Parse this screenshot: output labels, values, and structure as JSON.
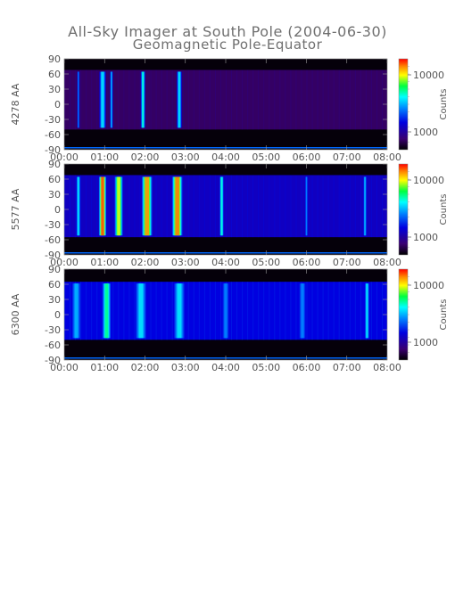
{
  "title": "All-Sky Imager at South Pole (2004-06-30)",
  "subtitle": "Geomagnetic Pole-Equator",
  "chart_data": [
    {
      "type": "heatmap",
      "ylabel": "4278 AA",
      "colorbar_label": "Counts",
      "colorbar_ticks": [
        "10000",
        "1000"
      ],
      "y_ticks": [
        "90",
        "60",
        "30",
        "0",
        "-30",
        "-60",
        "-90"
      ],
      "x_ticks": [
        "00:00",
        "01:00",
        "02:00",
        "03:00",
        "04:00",
        "05:00",
        "06:00",
        "07:00",
        "08:00"
      ],
      "xlim": [
        "00:00",
        "08:00"
      ],
      "ylim": [
        -90,
        90
      ],
      "active_band": [
        -50,
        68
      ],
      "background_level": 0.1,
      "activity": [
        {
          "t": 0.35,
          "w": 0.05,
          "level": 0.45
        },
        {
          "t": 0.95,
          "w": 0.18,
          "level": 0.55
        },
        {
          "t": 1.17,
          "w": 0.08,
          "level": 0.5
        },
        {
          "t": 1.95,
          "w": 0.12,
          "level": 0.6
        },
        {
          "t": 2.85,
          "w": 0.14,
          "level": 0.55
        }
      ]
    },
    {
      "type": "heatmap",
      "ylabel": "5577 AA",
      "colorbar_label": "Counts",
      "colorbar_ticks": [
        "10000",
        "1000"
      ],
      "y_ticks": [
        "90",
        "60",
        "30",
        "0",
        "-30",
        "-60",
        "-90"
      ],
      "x_ticks": [
        "00:00",
        "01:00",
        "02:00",
        "03:00",
        "04:00",
        "05:00",
        "06:00",
        "07:00",
        "08:00"
      ],
      "xlim": [
        "00:00",
        "08:00"
      ],
      "ylim": [
        -90,
        90
      ],
      "active_band": [
        -55,
        68
      ],
      "background_level": 0.25,
      "activity": [
        {
          "t": 0.35,
          "w": 0.1,
          "level": 0.55
        },
        {
          "t": 0.95,
          "w": 0.18,
          "level": 0.95
        },
        {
          "t": 1.35,
          "w": 0.2,
          "level": 0.8
        },
        {
          "t": 2.05,
          "w": 0.25,
          "level": 0.9
        },
        {
          "t": 2.8,
          "w": 0.25,
          "level": 0.92
        },
        {
          "t": 3.9,
          "w": 0.1,
          "level": 0.6
        },
        {
          "t": 6.0,
          "w": 0.06,
          "level": 0.45
        },
        {
          "t": 7.45,
          "w": 0.08,
          "level": 0.5
        }
      ]
    },
    {
      "type": "heatmap",
      "ylabel": "6300 AA",
      "colorbar_label": "Counts",
      "colorbar_ticks": [
        "10000",
        "1000"
      ],
      "y_ticks": [
        "90",
        "60",
        "30",
        "0",
        "-30",
        "-60",
        "-90"
      ],
      "x_ticks": [
        "00:00",
        "01:00",
        "02:00",
        "03:00",
        "04:00",
        "05:00",
        "06:00",
        "07:00",
        "08:00"
      ],
      "xlim": [
        "00:00",
        "08:00"
      ],
      "ylim": [
        -90,
        90
      ],
      "active_band": [
        -50,
        65
      ],
      "background_level": 0.3,
      "activity": [
        {
          "t": 0.3,
          "w": 0.2,
          "level": 0.5
        },
        {
          "t": 1.05,
          "w": 0.2,
          "level": 0.65
        },
        {
          "t": 1.9,
          "w": 0.25,
          "level": 0.55
        },
        {
          "t": 2.85,
          "w": 0.25,
          "level": 0.55
        },
        {
          "t": 4.0,
          "w": 0.15,
          "level": 0.45
        },
        {
          "t": 5.9,
          "w": 0.15,
          "level": 0.45
        },
        {
          "t": 7.5,
          "w": 0.1,
          "level": 0.55
        }
      ]
    }
  ],
  "colors": {
    "text": "#555555",
    "title": "#6f6f6f",
    "dark": "#05000a",
    "grid": "#5a0080"
  }
}
